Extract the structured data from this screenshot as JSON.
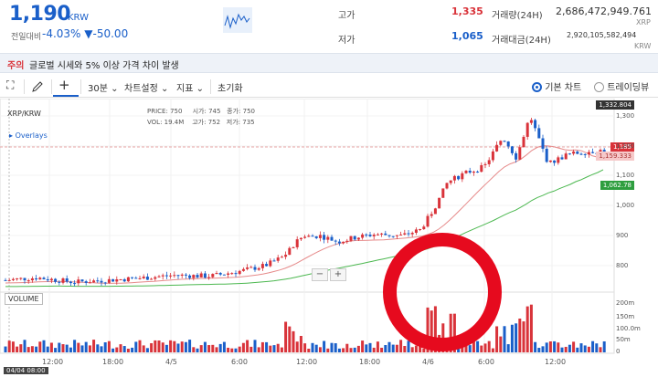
{
  "header": {
    "price": "1,190",
    "unit": "KRW",
    "change_label": "전일대비",
    "change_pct": "-4.03%",
    "change_arrow": "▼",
    "change_abs": "-50.00",
    "high_label": "고가",
    "high_value": "1,335",
    "low_label": "저가",
    "low_value": "1,065",
    "volume_label": "거래량(24H)",
    "volume_value": "2,686,472,949.761",
    "volume_unit": "XRP",
    "amount_label": "거래대금(24H)",
    "amount_value": "2,920,105,582,494",
    "amount_unit": "KRW"
  },
  "notice": {
    "tag": "주의",
    "text": "글로벌 시세와 5% 이상 가격 차이 발생"
  },
  "toolbar": {
    "interval": "30분",
    "chart_settings": "차트설정",
    "indicators": "지표",
    "reset": "초기화",
    "basic_chart": "기본 차트",
    "tradingview": "트레이딩뷰"
  },
  "chart": {
    "symbol": "XRP/KRW",
    "overlays": "Overlays",
    "price_label": "PRICE:",
    "price_val": "750",
    "open_label": "시가:",
    "open_val": "745",
    "close_label": "종가:",
    "close_val": "750",
    "vol_label": "VOL:",
    "vol_val": "19.4M",
    "high_label": "고가:",
    "high_val": "752",
    "low_label": "저가:",
    "low_val": "735",
    "volume_panel": "VOLUME",
    "badge_top": "1,332.804",
    "badge_price": "1,185",
    "badge_ma1": "1,159.333",
    "badge_ma2": "1,062.78",
    "y_ticks": [
      "1,300",
      "1,200",
      "1,100",
      "1,000",
      "900",
      "800"
    ],
    "v_ticks": [
      "200m",
      "150m",
      "100.0m",
      "50m",
      "0"
    ],
    "x_ticks": [
      "12:00",
      "18:00",
      "4/5",
      "6:00",
      "12:00",
      "18:00",
      "4/6",
      "6:00",
      "12:00"
    ],
    "cursor_date": "04/04 08:00"
  }
}
